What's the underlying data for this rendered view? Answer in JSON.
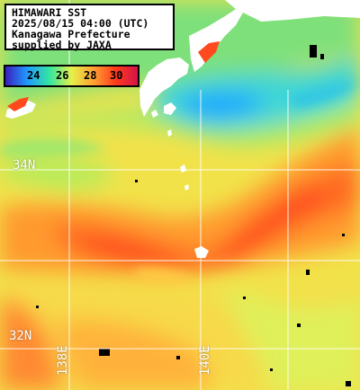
{
  "header": {
    "line1": "HIMAWARI SST",
    "line2": "2025/08/15 04:00 (UTC)",
    "line3": "Kanagawa Prefecture",
    "line4": "supplied by JAXA"
  },
  "legend": {
    "ticks": [
      "24",
      "26",
      "28",
      "30"
    ],
    "colors": [
      "#3a1fbf",
      "#1f9bff",
      "#33e6a0",
      "#e6f04a",
      "#ffa033",
      "#ff3a1a",
      "#d4144a"
    ]
  },
  "grid": {
    "lat_labels": [
      "34N",
      "32N"
    ],
    "lon_labels": [
      "138E",
      "140E"
    ]
  },
  "colors": {
    "land": "#ffffff",
    "grid_line": "#ffffff",
    "missing": "#000000"
  }
}
